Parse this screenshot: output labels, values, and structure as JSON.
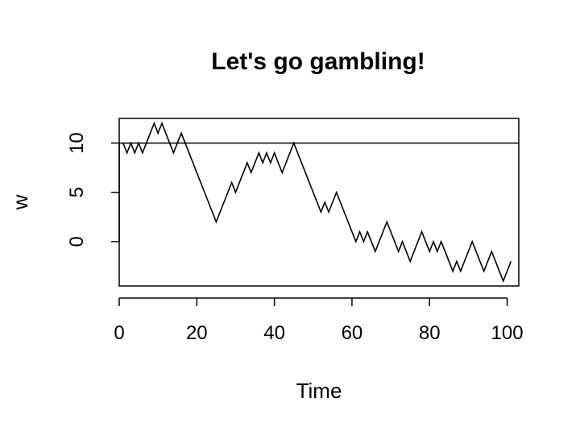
{
  "chart_data": {
    "type": "line",
    "title": "Let's go gambling!",
    "xlabel": "Time",
    "ylabel": "w",
    "xlim": [
      0,
      103
    ],
    "ylim": [
      -4.5,
      12.5
    ],
    "x_ticks": [
      0,
      20,
      40,
      60,
      80,
      100
    ],
    "y_ticks": [
      0,
      5,
      10
    ],
    "x_tick_labels": [
      "0",
      "20",
      "40",
      "60",
      "80",
      "100"
    ],
    "y_tick_labels": [
      "0",
      "5",
      "10"
    ],
    "reference_line": {
      "orientation": "horizontal",
      "y": 10
    },
    "grid": false,
    "legend": "none",
    "series": [
      {
        "x": [
          1,
          2,
          3,
          4,
          5,
          6,
          7,
          8,
          9,
          10,
          11,
          12,
          13,
          14,
          15,
          16,
          17,
          18,
          19,
          20,
          21,
          22,
          23,
          24,
          25,
          26,
          27,
          28,
          29,
          30,
          31,
          32,
          33,
          34,
          35,
          36,
          37,
          38,
          39,
          40,
          41,
          42,
          43,
          44,
          45,
          46,
          47,
          48,
          49,
          50,
          51,
          52,
          53,
          54,
          55,
          56,
          57,
          58,
          59,
          60,
          61,
          62,
          63,
          64,
          65,
          66,
          67,
          68,
          69,
          70,
          71,
          72,
          73,
          74,
          75,
          76,
          77,
          78,
          79,
          80,
          81,
          82,
          83,
          84,
          85,
          86,
          87,
          88,
          89,
          90,
          91,
          92,
          93,
          94,
          95,
          96,
          97,
          98,
          99,
          100,
          101
        ],
        "values": [
          10,
          9,
          10,
          9,
          10,
          9,
          10,
          11,
          12,
          11,
          12,
          11,
          10,
          9,
          10,
          11,
          10,
          9,
          8,
          7,
          6,
          5,
          4,
          3,
          2,
          3,
          4,
          5,
          6,
          5,
          6,
          7,
          8,
          7,
          8,
          9,
          8,
          9,
          8,
          9,
          8,
          7,
          8,
          9,
          10,
          9,
          8,
          7,
          6,
          5,
          4,
          3,
          4,
          3,
          4,
          5,
          4,
          3,
          2,
          1,
          0,
          1,
          0,
          1,
          0,
          -1,
          0,
          1,
          2,
          1,
          0,
          -1,
          0,
          -1,
          -2,
          -1,
          0,
          1,
          0,
          -1,
          0,
          -1,
          0,
          -1,
          -2,
          -3,
          -2,
          -3,
          -2,
          -1,
          0,
          -1,
          -2,
          -3,
          -2,
          -1,
          -2,
          -3,
          -4,
          -3,
          -2
        ]
      }
    ]
  }
}
